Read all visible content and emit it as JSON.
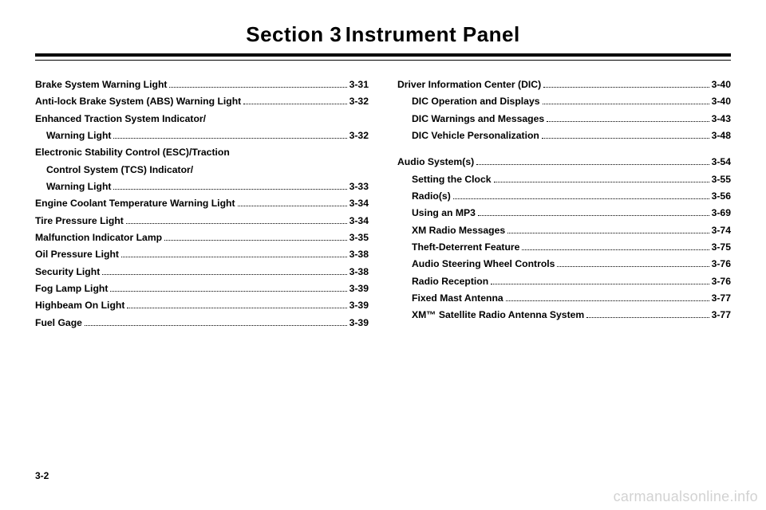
{
  "header": {
    "section_label": "Section 3",
    "section_title": "Instrument Panel"
  },
  "toc": {
    "left": [
      {
        "lines": [
          "Brake System Warning Light"
        ],
        "page": "3-31",
        "indent": 0
      },
      {
        "lines": [
          "Anti-lock Brake System (ABS) Warning Light"
        ],
        "page": "3-32",
        "indent": 0
      },
      {
        "lines": [
          "Enhanced Traction System Indicator/",
          "Warning Light"
        ],
        "page": "3-32",
        "indent": 0
      },
      {
        "lines": [
          "Electronic Stability Control (ESC)/Traction",
          "Control System (TCS) Indicator/",
          "Warning Light"
        ],
        "page": "3-33",
        "indent": 0
      },
      {
        "lines": [
          "Engine Coolant Temperature Warning Light"
        ],
        "page": "3-34",
        "indent": 0
      },
      {
        "lines": [
          "Tire Pressure Light"
        ],
        "page": "3-34",
        "indent": 0
      },
      {
        "lines": [
          "Malfunction Indicator Lamp"
        ],
        "page": "3-35",
        "indent": 0
      },
      {
        "lines": [
          "Oil Pressure Light"
        ],
        "page": "3-38",
        "indent": 0
      },
      {
        "lines": [
          "Security Light"
        ],
        "page": "3-38",
        "indent": 0
      },
      {
        "lines": [
          "Fog Lamp Light"
        ],
        "page": "3-39",
        "indent": 0
      },
      {
        "lines": [
          "Highbeam On Light"
        ],
        "page": "3-39",
        "indent": 0
      },
      {
        "lines": [
          "Fuel Gage"
        ],
        "page": "3-39",
        "indent": 0
      }
    ],
    "right_groups": [
      [
        {
          "lines": [
            "Driver Information Center (DIC)"
          ],
          "page": "3-40",
          "indent": 0
        },
        {
          "lines": [
            "DIC Operation and Displays"
          ],
          "page": "3-40",
          "indent": 1
        },
        {
          "lines": [
            "DIC Warnings and Messages"
          ],
          "page": "3-43",
          "indent": 1
        },
        {
          "lines": [
            "DIC Vehicle Personalization"
          ],
          "page": "3-48",
          "indent": 1
        }
      ],
      [
        {
          "lines": [
            "Audio System(s)"
          ],
          "page": "3-54",
          "indent": 0
        },
        {
          "lines": [
            "Setting the Clock"
          ],
          "page": "3-55",
          "indent": 1
        },
        {
          "lines": [
            "Radio(s)"
          ],
          "page": "3-56",
          "indent": 1
        },
        {
          "lines": [
            "Using an MP3"
          ],
          "page": "3-69",
          "indent": 1
        },
        {
          "lines": [
            "XM Radio Messages"
          ],
          "page": "3-74",
          "indent": 1
        },
        {
          "lines": [
            "Theft-Deterrent Feature"
          ],
          "page": "3-75",
          "indent": 1
        },
        {
          "lines": [
            "Audio Steering Wheel Controls"
          ],
          "page": "3-76",
          "indent": 1
        },
        {
          "lines": [
            "Radio Reception"
          ],
          "page": "3-76",
          "indent": 1
        },
        {
          "lines": [
            "Fixed Mast Antenna"
          ],
          "page": "3-77",
          "indent": 1
        },
        {
          "lines": [
            "XM™ Satellite Radio Antenna System"
          ],
          "page": "3-77",
          "indent": 1
        }
      ]
    ]
  },
  "footer": {
    "page_number": "3-2",
    "watermark": "carmanualsonline.info"
  }
}
